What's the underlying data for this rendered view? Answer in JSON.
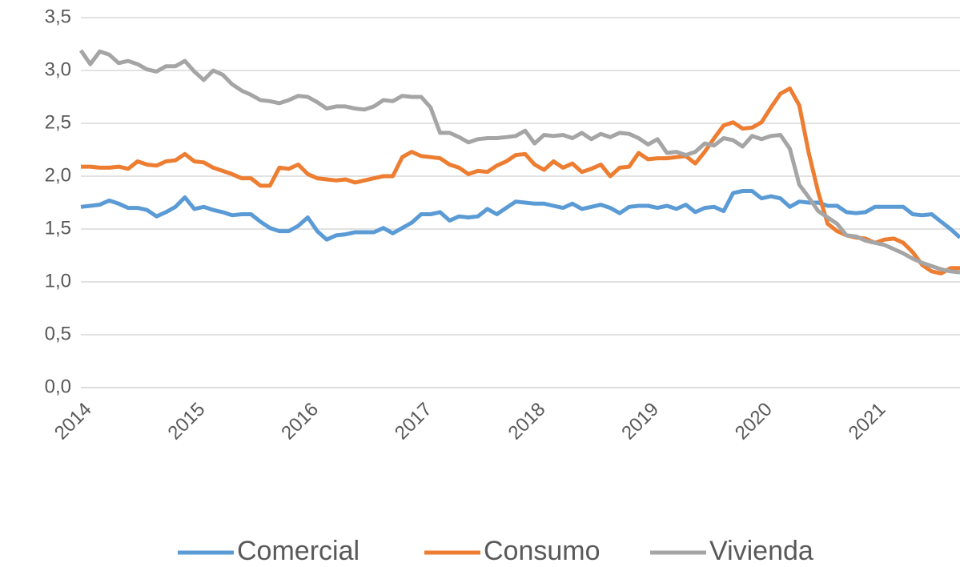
{
  "chart_data": {
    "type": "line",
    "categories": [
      "2014",
      null,
      null,
      null,
      null,
      null,
      null,
      null,
      null,
      null,
      null,
      null,
      "2015",
      null,
      null,
      null,
      null,
      null,
      null,
      null,
      null,
      null,
      null,
      null,
      "2016",
      null,
      null,
      null,
      null,
      null,
      null,
      null,
      null,
      null,
      null,
      null,
      "2017",
      null,
      null,
      null,
      null,
      null,
      null,
      null,
      null,
      null,
      null,
      null,
      "2018",
      null,
      null,
      null,
      null,
      null,
      null,
      null,
      null,
      null,
      null,
      null,
      "2019",
      null,
      null,
      null,
      null,
      null,
      null,
      null,
      null,
      null,
      null,
      null,
      "2020",
      null,
      null,
      null,
      null,
      null,
      null,
      null,
      null,
      null,
      null,
      null,
      "2021",
      null,
      null,
      null,
      null,
      null,
      null,
      null,
      null,
      null
    ],
    "series": [
      {
        "name": "Comercial",
        "color": "#5b9bd5",
        "values": [
          1.71,
          1.72,
          1.73,
          1.77,
          1.74,
          1.7,
          1.7,
          1.68,
          1.62,
          1.66,
          1.71,
          1.8,
          1.69,
          1.71,
          1.68,
          1.66,
          1.63,
          1.64,
          1.64,
          1.57,
          1.51,
          1.48,
          1.48,
          1.53,
          1.61,
          1.48,
          1.4,
          1.44,
          1.45,
          1.47,
          1.47,
          1.47,
          1.51,
          1.46,
          1.51,
          1.56,
          1.64,
          1.64,
          1.66,
          1.58,
          1.62,
          1.61,
          1.62,
          1.69,
          1.64,
          1.7,
          1.76,
          1.75,
          1.74,
          1.74,
          1.72,
          1.7,
          1.74,
          1.69,
          1.71,
          1.73,
          1.7,
          1.65,
          1.71,
          1.72,
          1.72,
          1.7,
          1.72,
          1.69,
          1.73,
          1.66,
          1.7,
          1.71,
          1.67,
          1.84,
          1.86,
          1.86,
          1.79,
          1.81,
          1.79,
          1.71,
          1.76,
          1.75,
          1.75,
          1.72,
          1.72,
          1.66,
          1.65,
          1.66,
          1.71,
          1.71,
          1.71,
          1.71,
          1.64,
          1.63,
          1.64,
          1.57,
          1.5,
          1.42
        ]
      },
      {
        "name": "Consumo",
        "color": "#ed7d31",
        "values": [
          2.09,
          2.09,
          2.08,
          2.08,
          2.09,
          2.07,
          2.14,
          2.11,
          2.1,
          2.14,
          2.15,
          2.21,
          2.14,
          2.13,
          2.08,
          2.05,
          2.02,
          1.98,
          1.98,
          1.91,
          1.91,
          2.08,
          2.07,
          2.11,
          2.02,
          1.98,
          1.97,
          1.96,
          1.97,
          1.94,
          1.96,
          1.98,
          2.0,
          2.0,
          2.18,
          2.23,
          2.19,
          2.18,
          2.17,
          2.11,
          2.08,
          2.02,
          2.05,
          2.04,
          2.1,
          2.14,
          2.2,
          2.21,
          2.11,
          2.06,
          2.14,
          2.08,
          2.12,
          2.04,
          2.07,
          2.11,
          2.0,
          2.08,
          2.09,
          2.22,
          2.16,
          2.17,
          2.17,
          2.18,
          2.19,
          2.12,
          2.23,
          2.36,
          2.48,
          2.51,
          2.45,
          2.46,
          2.51,
          2.65,
          2.78,
          2.83,
          2.67,
          2.22,
          1.85,
          1.55,
          1.48,
          1.44,
          1.42,
          1.41,
          1.37,
          1.4,
          1.41,
          1.37,
          1.28,
          1.16,
          1.1,
          1.08,
          1.13,
          1.13
        ]
      },
      {
        "name": "Vivienda",
        "color": "#a5a5a5",
        "values": [
          3.19,
          3.06,
          3.18,
          3.15,
          3.07,
          3.09,
          3.06,
          3.01,
          2.99,
          3.04,
          3.04,
          3.09,
          2.99,
          2.91,
          3.0,
          2.96,
          2.87,
          2.81,
          2.77,
          2.72,
          2.71,
          2.69,
          2.72,
          2.76,
          2.75,
          2.7,
          2.64,
          2.66,
          2.66,
          2.64,
          2.63,
          2.66,
          2.72,
          2.71,
          2.76,
          2.75,
          2.75,
          2.65,
          2.41,
          2.41,
          2.37,
          2.32,
          2.35,
          2.36,
          2.36,
          2.37,
          2.38,
          2.43,
          2.31,
          2.39,
          2.38,
          2.39,
          2.36,
          2.41,
          2.35,
          2.4,
          2.37,
          2.41,
          2.4,
          2.36,
          2.3,
          2.35,
          2.22,
          2.23,
          2.2,
          2.23,
          2.31,
          2.29,
          2.36,
          2.34,
          2.28,
          2.38,
          2.35,
          2.38,
          2.39,
          2.26,
          1.92,
          1.8,
          1.67,
          1.61,
          1.55,
          1.44,
          1.43,
          1.39,
          1.37,
          1.35,
          1.31,
          1.27,
          1.22,
          1.18,
          1.15,
          1.12,
          1.1,
          1.09
        ]
      }
    ],
    "ylim": [
      0,
      3.5
    ],
    "yticks": [
      {
        "value": 0,
        "label": "0,0"
      },
      {
        "value": 0.5,
        "label": "0,5"
      },
      {
        "value": 1,
        "label": "1,0"
      },
      {
        "value": 1.5,
        "label": "1,5"
      },
      {
        "value": 2,
        "label": "2,0"
      },
      {
        "value": 2.5,
        "label": "2,5"
      },
      {
        "value": 3,
        "label": "3,0"
      },
      {
        "value": 3.5,
        "label": "3,5"
      }
    ],
    "grid": true,
    "legend": "bottom"
  }
}
